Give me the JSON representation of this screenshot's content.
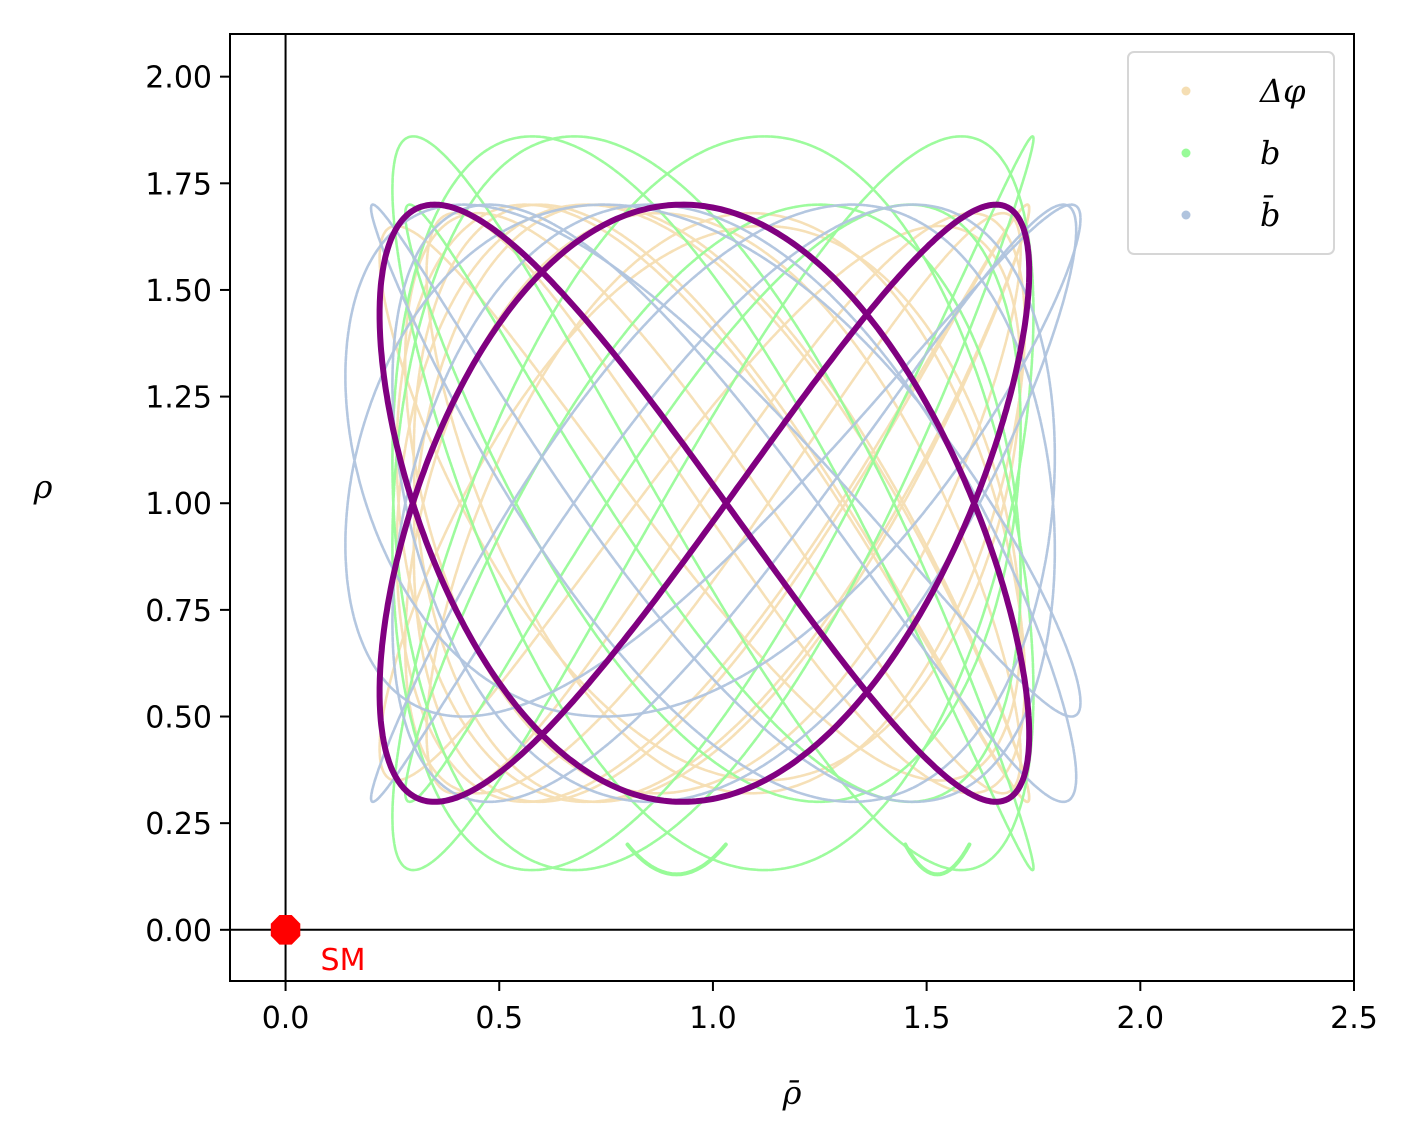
{
  "chart_data": {
    "type": "scatter",
    "xlabel": "ρ̄",
    "ylabel": "ρ",
    "xlim": [
      -0.13,
      2.5
    ],
    "ylim": [
      -0.12,
      2.1
    ],
    "xticks": [
      "0.0",
      "0.5",
      "1.0",
      "1.5",
      "2.0",
      "2.5"
    ],
    "yticks": [
      "0.00",
      "0.25",
      "0.50",
      "0.75",
      "1.00",
      "1.25",
      "1.50",
      "1.75",
      "2.00"
    ],
    "grid": false,
    "legend_position": "top-right",
    "reference_lines": {
      "x": 0,
      "y": 0
    },
    "point": {
      "name": "SM",
      "x": 0,
      "y": 0,
      "color": "#ff0000"
    },
    "series": [
      {
        "name": "Δφ",
        "color": "#f5deb3",
        "curves": [
          {
            "cx": 0.97,
            "cy": 1.0,
            "ax": 0.75,
            "ay": 0.65,
            "px": 0.0,
            "py": 0.3
          },
          {
            "cx": 1.02,
            "cy": 1.0,
            "ax": 0.72,
            "ay": 0.7,
            "px": 0.5,
            "py": -0.2
          },
          {
            "cx": 1.0,
            "cy": 1.0,
            "ax": 0.74,
            "ay": 0.7,
            "px": 1.1,
            "py": 0.7
          },
          {
            "cx": 1.0,
            "cy": 1.0,
            "ax": 0.72,
            "ay": 0.68,
            "px": 1.8,
            "py": 1.4
          },
          {
            "cx": 1.03,
            "cy": 1.0,
            "ax": 0.7,
            "ay": 0.68,
            "px": 2.6,
            "py": 2.2
          }
        ]
      },
      {
        "name": "b",
        "color": "#98fb98",
        "curves": [
          {
            "cx": 1.0,
            "cy": 1.0,
            "ax": 0.75,
            "ay": 0.86,
            "px": 0.6,
            "py": 0.0
          },
          {
            "cx": 1.0,
            "cy": 1.0,
            "ax": 0.72,
            "ay": 0.7,
            "px": 2.2,
            "py": 1.2
          },
          {
            "cx": 1.0,
            "cy": 1.0,
            "ax": 0.75,
            "ay": 0.86,
            "px": 3.6,
            "py": 2.5
          }
        ],
        "arcs": [
          {
            "x0": 0.8,
            "x1": 1.03,
            "ymin": 0.13,
            "ymax": 0.2
          },
          {
            "x0": 1.45,
            "x1": 1.6,
            "ymin": 0.13,
            "ymax": 0.2
          }
        ]
      },
      {
        "name": "b̄",
        "color": "#b0c4de",
        "curves": [
          {
            "cx": 1.0,
            "cy": 1.1,
            "ax": 0.86,
            "ay": 0.6,
            "px": 0.3,
            "py": 0.0
          },
          {
            "cx": 1.05,
            "cy": 1.0,
            "ax": 0.8,
            "ay": 0.7,
            "px": 1.4,
            "py": 0.9
          },
          {
            "cx": 1.0,
            "cy": 1.0,
            "ax": 0.8,
            "ay": 0.7,
            "px": 2.8,
            "py": 2.0
          }
        ]
      }
    ],
    "highlight": {
      "color": "#800080",
      "cx": 0.98,
      "cy": 1.0,
      "ax": 0.76,
      "ay": 0.7,
      "fx": 2,
      "fy": 3,
      "px": 0.98,
      "py": 0.0
    }
  }
}
